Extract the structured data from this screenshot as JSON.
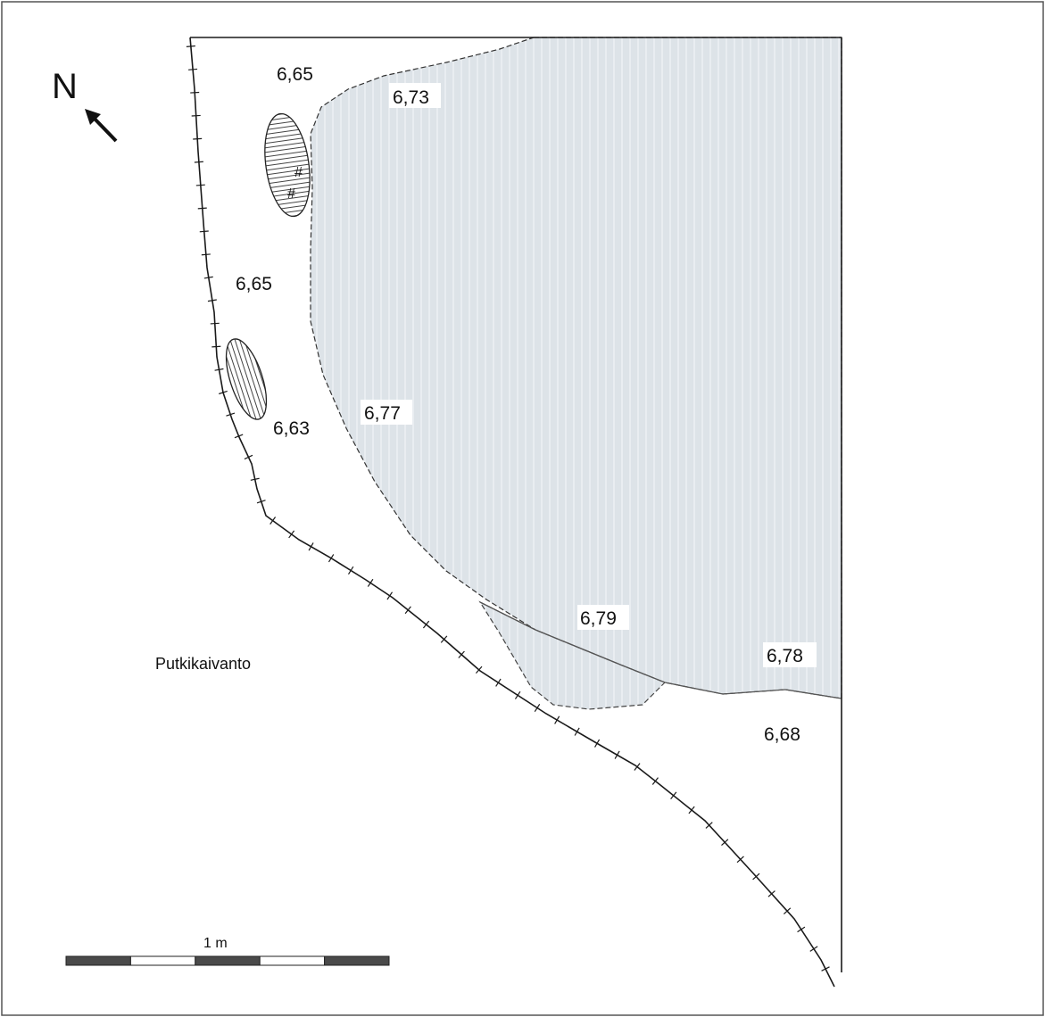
{
  "north_arrow": {
    "letter": "N",
    "icon": "arrow-northwest-icon"
  },
  "elevations": {
    "e1": "6,65",
    "e2": "6,73",
    "e3": "6,65",
    "e4": "6,63",
    "e5": "6,77",
    "e6": "6,79",
    "e7": "6,78",
    "e8": "6,68"
  },
  "area_label": "Putkikaivanto",
  "symbols": {
    "hash_1": "#",
    "hash_2": "#"
  },
  "scale_bar": {
    "label": "1 m",
    "segments": 5
  },
  "colors": {
    "fill_area": "#dfe5ea",
    "line": "#1a1a1a",
    "bar_dark": "#4a4a4a"
  }
}
